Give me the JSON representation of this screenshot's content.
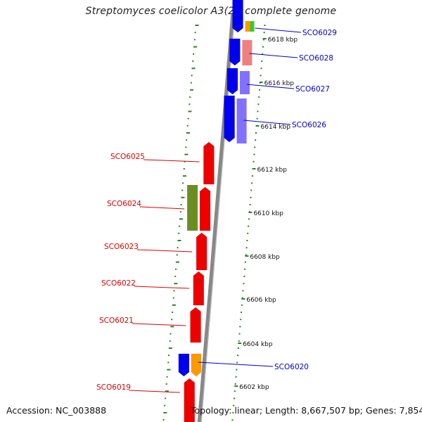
{
  "title": "Streptomyces coelicolor A3(2), complete genome",
  "footer": {
    "accession": "Accession: NC_003888",
    "stats": "Topology: linear; Length: 8,667,507 bp; Genes: 7,854"
  },
  "colors": {
    "forward_label": "#0000cc",
    "reverse_label": "#dd0000",
    "backbone": "#888888",
    "tick": "#228822",
    "blue_gene": "#0000ee",
    "red_gene": "#ee0000",
    "olive_gene": "#6b8e23",
    "orange_gene": "#ff9900",
    "green_gene": "#33cc33",
    "pink_gene": "#f08080",
    "purple_gene": "#8470ff"
  },
  "scale_labels": [
    "6618 kbp",
    "6616 kbp",
    "6614 kbp",
    "6612 kbp",
    "6610 kbp",
    "6608 kbp",
    "6606 kbp",
    "6604 kbp",
    "6602 kbp"
  ],
  "genes_forward": [
    {
      "label": "SCO6029",
      "color": "blue_gene",
      "extras": [
        "orange_gene",
        "green_gene"
      ]
    },
    {
      "label": "SCO6028",
      "color": "blue_gene",
      "extras": [
        "pink_gene"
      ]
    },
    {
      "label": "SCO6027",
      "color": "blue_gene",
      "extras": [
        "purple_gene"
      ]
    },
    {
      "label": "SCO6026",
      "color": "blue_gene",
      "extras": [
        "purple_gene"
      ]
    },
    {
      "label": "SCO6020",
      "color": "blue_gene",
      "extras": [
        "orange_gene"
      ]
    }
  ],
  "genes_reverse": [
    {
      "label": "SCO6025",
      "color": "red_gene"
    },
    {
      "label": "SCO6024",
      "color": "red_gene",
      "extras": [
        "olive_gene"
      ]
    },
    {
      "label": "SCO6023",
      "color": "red_gene"
    },
    {
      "label": "SCO6022",
      "color": "red_gene"
    },
    {
      "label": "SCO6021",
      "color": "red_gene"
    },
    {
      "label": "SCO6019",
      "color": "red_gene"
    }
  ]
}
